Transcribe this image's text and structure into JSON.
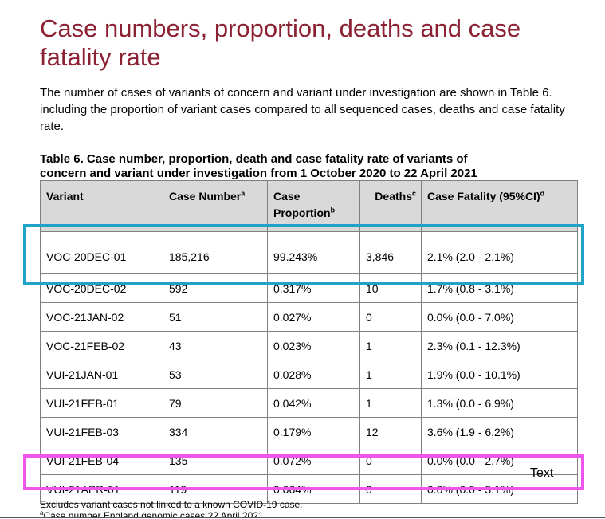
{
  "title": "Case numbers, proportion, deaths and case fatality rate",
  "paragraph": "The number of cases of variants of concern and variant under investigation are shown in Table 6. including the proportion of variant cases compared to all sequenced cases, deaths and case fatality rate.",
  "caption": {
    "line1": "Table 6. Case number, proportion, death and case fatality rate of variants of",
    "line2": "concern and variant under investigation from 1 October 2020 to 22 April 2021"
  },
  "table": {
    "headers": [
      {
        "label": "Variant",
        "sup": ""
      },
      {
        "label": "Case Number",
        "sup": "a"
      },
      {
        "label": "Case Proportion",
        "sup": "b"
      },
      {
        "label": "Deaths",
        "sup": "c"
      },
      {
        "label": "Case Fatality (95%CI)",
        "sup": "d"
      }
    ],
    "rows": [
      [
        "VOC-20DEC-01",
        "185,216",
        "99.243%",
        "3,846",
        "2.1% (2.0 - 2.1%)"
      ],
      [
        "VOC-20DEC-02",
        "592",
        "0.317%",
        "10",
        "1.7% (0.8 - 3.1%)"
      ],
      [
        "VOC-21JAN-02",
        "51",
        "0.027%",
        "0",
        "0.0% (0.0 - 7.0%)"
      ],
      [
        "VOC-21FEB-02",
        "43",
        "0.023%",
        "1",
        "2.3% (0.1 - 12.3%)"
      ],
      [
        "VUI-21JAN-01",
        "53",
        "0.028%",
        "1",
        "1.9% (0.0 - 10.1%)"
      ],
      [
        "VUI-21FEB-01",
        "79",
        "0.042%",
        "1",
        "1.3% (0.0 - 6.9%)"
      ],
      [
        "VUI-21FEB-03",
        "334",
        "0.179%",
        "12",
        "3.6% (1.9 - 6.2%)"
      ],
      [
        "VUI-21FEB-04",
        "135",
        "0.072%",
        "0",
        "0.0% (0.0 - 2.7%)"
      ],
      [
        "VUI-21APR-01",
        "119",
        "0.064%",
        "0",
        "0.0% (0.0 - 3.1%)"
      ]
    ]
  },
  "annotation_label": "Text",
  "notes": {
    "line1": "Excludes variant cases not linked to a known COVID-19 case.",
    "line2_sup": "a",
    "line2": "Case number England genomic cases 22 April 2021"
  },
  "colors": {
    "title": "#8c2133",
    "header_bg": "#d9d9d9",
    "highlight_blue": "#1fa3c8",
    "highlight_pink": "#ee55ee"
  }
}
